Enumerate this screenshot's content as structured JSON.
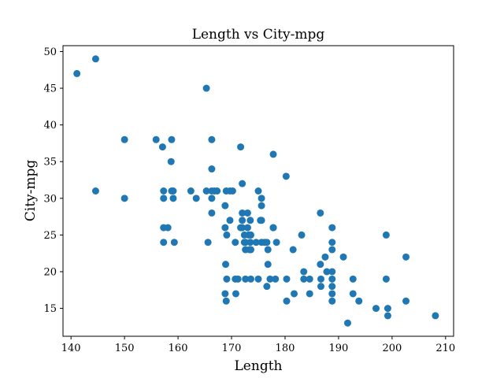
{
  "chart_data": {
    "type": "scatter",
    "title": "Length vs City-mpg",
    "xlabel": "Length",
    "ylabel": "City-mpg",
    "xlim": [
      138.5,
      211.5
    ],
    "ylim": [
      11.2,
      50.8
    ],
    "xticks": [
      140,
      150,
      160,
      170,
      180,
      190,
      200,
      210
    ],
    "yticks": [
      15,
      20,
      25,
      30,
      35,
      40,
      45,
      50
    ],
    "grid": false,
    "color": "#1f77b4",
    "points": [
      [
        141.1,
        47
      ],
      [
        144.6,
        49
      ],
      [
        144.6,
        31
      ],
      [
        150.0,
        38
      ],
      [
        150.0,
        30
      ],
      [
        155.9,
        38
      ],
      [
        157.1,
        37
      ],
      [
        157.3,
        31
      ],
      [
        157.3,
        30
      ],
      [
        157.3,
        26
      ],
      [
        157.3,
        24
      ],
      [
        158.1,
        26
      ],
      [
        158.7,
        35
      ],
      [
        158.8,
        38
      ],
      [
        158.8,
        31
      ],
      [
        159.1,
        31
      ],
      [
        159.1,
        30
      ],
      [
        159.3,
        24
      ],
      [
        162.4,
        31
      ],
      [
        163.4,
        30
      ],
      [
        165.3,
        45
      ],
      [
        165.3,
        31
      ],
      [
        165.6,
        24
      ],
      [
        166.3,
        38
      ],
      [
        166.3,
        34
      ],
      [
        166.3,
        31
      ],
      [
        166.3,
        30
      ],
      [
        166.3,
        28
      ],
      [
        166.8,
        31
      ],
      [
        167.3,
        31
      ],
      [
        168.8,
        29
      ],
      [
        168.8,
        26
      ],
      [
        168.8,
        17
      ],
      [
        168.9,
        21
      ],
      [
        169.0,
        31
      ],
      [
        169.0,
        16
      ],
      [
        169.1,
        25
      ],
      [
        169.1,
        19
      ],
      [
        169.7,
        27
      ],
      [
        169.7,
        31
      ],
      [
        170.2,
        31
      ],
      [
        170.7,
        24
      ],
      [
        170.7,
        19
      ],
      [
        170.8,
        17
      ],
      [
        171.2,
        19
      ],
      [
        171.7,
        37
      ],
      [
        171.7,
        26
      ],
      [
        172.0,
        27
      ],
      [
        172.0,
        32
      ],
      [
        172.0,
        28
      ],
      [
        172.0,
        26
      ],
      [
        172.4,
        25
      ],
      [
        172.4,
        24
      ],
      [
        172.6,
        24
      ],
      [
        172.6,
        23
      ],
      [
        172.6,
        19
      ],
      [
        173.0,
        28
      ],
      [
        173.0,
        26
      ],
      [
        173.2,
        25
      ],
      [
        173.4,
        23
      ],
      [
        173.5,
        27
      ],
      [
        173.5,
        24
      ],
      [
        173.6,
        25
      ],
      [
        173.6,
        19
      ],
      [
        173.6,
        23
      ],
      [
        174.6,
        24
      ],
      [
        175.0,
        31
      ],
      [
        175.0,
        19
      ],
      [
        175.4,
        27
      ],
      [
        175.6,
        30
      ],
      [
        175.6,
        27
      ],
      [
        175.6,
        24
      ],
      [
        175.6,
        29
      ],
      [
        176.2,
        24
      ],
      [
        176.6,
        18
      ],
      [
        176.6,
        24
      ],
      [
        176.8,
        23
      ],
      [
        176.8,
        21
      ],
      [
        177.2,
        19
      ],
      [
        177.8,
        36
      ],
      [
        177.8,
        26
      ],
      [
        177.8,
        26
      ],
      [
        178.2,
        19
      ],
      [
        178.4,
        24
      ],
      [
        180.2,
        33
      ],
      [
        180.3,
        19
      ],
      [
        180.3,
        16
      ],
      [
        181.5,
        23
      ],
      [
        181.7,
        17
      ],
      [
        183.1,
        25
      ],
      [
        183.5,
        20
      ],
      [
        183.5,
        19
      ],
      [
        184.6,
        19
      ],
      [
        184.6,
        17
      ],
      [
        186.6,
        28
      ],
      [
        186.6,
        21
      ],
      [
        186.7,
        19
      ],
      [
        186.7,
        18
      ],
      [
        187.5,
        22
      ],
      [
        187.8,
        20
      ],
      [
        188.8,
        26
      ],
      [
        188.8,
        24
      ],
      [
        188.8,
        23
      ],
      [
        188.8,
        19
      ],
      [
        188.8,
        16
      ],
      [
        188.8,
        20
      ],
      [
        188.8,
        18
      ],
      [
        188.8,
        17
      ],
      [
        190.9,
        22
      ],
      [
        191.7,
        13
      ],
      [
        192.7,
        19
      ],
      [
        192.7,
        17
      ],
      [
        193.8,
        16
      ],
      [
        197.0,
        15
      ],
      [
        198.9,
        25
      ],
      [
        198.9,
        19
      ],
      [
        199.2,
        15
      ],
      [
        199.2,
        14
      ],
      [
        202.6,
        22
      ],
      [
        202.6,
        16
      ],
      [
        208.1,
        14
      ]
    ]
  }
}
